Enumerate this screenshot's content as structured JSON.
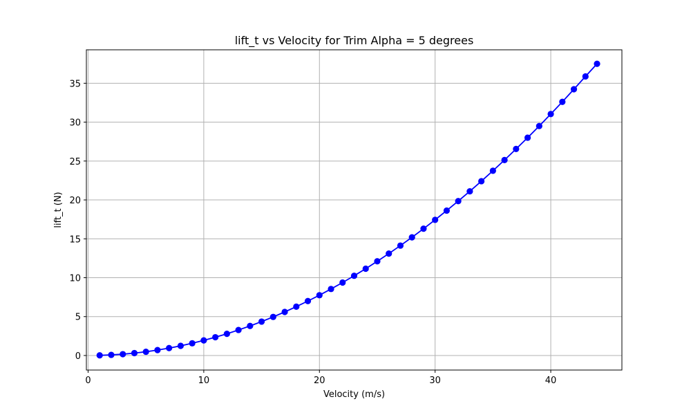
{
  "chart_data": {
    "type": "line",
    "title": "lift_t vs Velocity for Trim Alpha = 5 degrees",
    "xlabel": "Velocity (m/s)",
    "ylabel": "lift_t (N)",
    "xlim": [
      -0.15,
      46.15
    ],
    "ylim": [
      -1.87,
      39.3
    ],
    "xticks": [
      0,
      10,
      20,
      30,
      40
    ],
    "xtick_labels": [
      "0",
      "10",
      "20",
      "30",
      "40"
    ],
    "yticks": [
      0,
      5,
      10,
      15,
      20,
      25,
      30,
      35
    ],
    "ytick_labels": [
      "0",
      "5",
      "10",
      "15",
      "20",
      "25",
      "30",
      "35"
    ],
    "grid": true,
    "legend": "none",
    "series": [
      {
        "color": "#0000ff",
        "marker": "circle",
        "x": [
          1,
          2,
          3,
          4,
          5,
          6,
          7,
          8,
          9,
          10,
          11,
          12,
          13,
          14,
          15,
          16,
          17,
          18,
          19,
          20,
          21,
          22,
          23,
          24,
          25,
          26,
          27,
          28,
          29,
          30,
          31,
          32,
          33,
          34,
          35,
          36,
          37,
          38,
          39,
          40,
          41,
          42,
          43,
          44
        ],
        "y": [
          0.02,
          0.08,
          0.17,
          0.31,
          0.48,
          0.7,
          0.95,
          1.24,
          1.57,
          1.94,
          2.35,
          2.79,
          3.28,
          3.8,
          4.36,
          4.96,
          5.6,
          6.28,
          7.0,
          7.75,
          8.55,
          9.38,
          10.25,
          11.16,
          12.11,
          13.1,
          14.13,
          15.19,
          16.3,
          17.44,
          18.63,
          19.85,
          21.11,
          22.41,
          23.75,
          25.13,
          26.55,
          28.0,
          29.5,
          31.04,
          32.61,
          34.23,
          35.88,
          37.5
        ]
      }
    ]
  }
}
